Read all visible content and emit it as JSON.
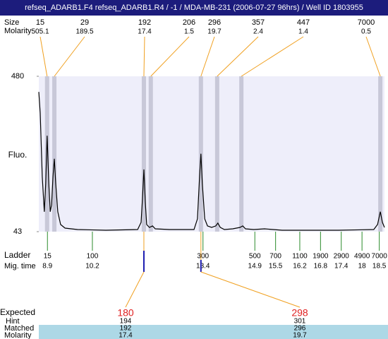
{
  "title": "refseq_ADARB1.F4  refseq_ADARB1.R4 / -1 / MDA-MB-231 (2006-07-27 96hrs) / Well ID 1803955",
  "row_labels": {
    "size": "Size",
    "molarity": "Molarity",
    "fluo": "Fluo.",
    "ladder": "Ladder",
    "mig_time": "Mig. time",
    "expected": "Expected",
    "hint": "Hint",
    "matched": "Matched",
    "matched_molarity": "Molarity"
  },
  "chart_data": {
    "type": "line",
    "xlim": [
      8.65,
      18.65
    ],
    "ylim": [
      43,
      480
    ],
    "yticks": [
      43,
      480
    ],
    "x": [
      8.65,
      8.69,
      8.75,
      8.81,
      8.85,
      8.89,
      8.94,
      8.98,
      9.02,
      9.06,
      9.1,
      9.14,
      9.2,
      9.28,
      9.41,
      9.77,
      10.59,
      11.51,
      11.61,
      11.65,
      11.69,
      11.73,
      11.77,
      11.85,
      11.94,
      12.02,
      12.43,
      13.14,
      13.24,
      13.3,
      13.34,
      13.38,
      13.45,
      13.53,
      13.65,
      13.77,
      13.83,
      13.9,
      14.02,
      14.26,
      14.47,
      14.55,
      14.63,
      14.87,
      15.18,
      15.69,
      17.32,
      18.34,
      18.45,
      18.53,
      18.59,
      18.65
    ],
    "series": [
      {
        "color": "#000000",
        "values": [
          436,
          377,
          198,
          99,
          178,
          313,
          178,
          99,
          118,
          198,
          248,
          178,
          99,
          63,
          53,
          49,
          47,
          49,
          69,
          138,
          218,
          128,
          63,
          55,
          59,
          51,
          49,
          49,
          79,
          198,
          262,
          178,
          79,
          59,
          55,
          59,
          67,
          55,
          49,
          51,
          55,
          59,
          51,
          49,
          51,
          47,
          47,
          49,
          63,
          99,
          69,
          55
        ]
      }
    ],
    "peaks": {
      "sizes": [
        15,
        29,
        192,
        206,
        296,
        357,
        447,
        7000
      ],
      "molarity": [
        505.1,
        189.5,
        17.4,
        1.5,
        19.7,
        2.4,
        1.4,
        0.5
      ],
      "times": [
        8.89,
        9.1,
        11.69,
        11.89,
        13.34,
        13.81,
        14.51,
        18.53
      ]
    },
    "ladder": {
      "sizes": [
        15,
        100,
        300,
        500,
        700,
        1100,
        1900,
        2900,
        4900,
        7000
      ],
      "times": [
        8.9,
        10.2,
        13.4,
        14.9,
        15.5,
        16.2,
        16.8,
        17.4,
        18,
        18.5
      ]
    }
  },
  "expected": {
    "values": [
      180,
      298
    ],
    "hint": [
      194,
      301
    ],
    "matched": [
      192,
      296
    ],
    "molarity": [
      17.4,
      19.7
    ],
    "times": [
      11.69,
      13.34
    ]
  }
}
